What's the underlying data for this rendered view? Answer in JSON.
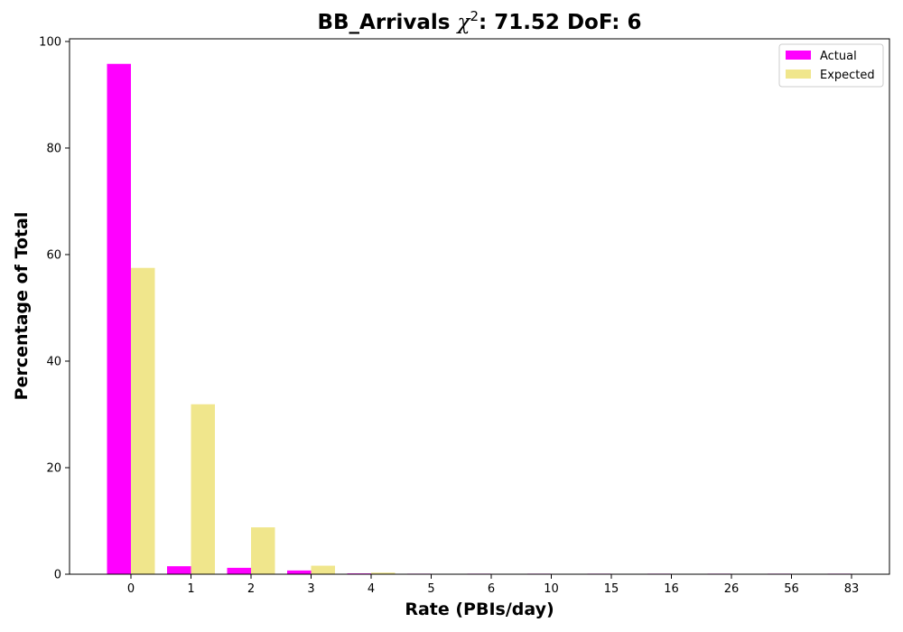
{
  "chart_data": {
    "type": "bar",
    "title": {
      "main": "BB_Arrivals ",
      "chi": "χ",
      "sup": "2",
      "rest": ": 71.52 DoF: 6"
    },
    "xlabel": "Rate (PBIs/day)",
    "ylabel": "Percentage of Total",
    "categories": [
      "0",
      "1",
      "2",
      "3",
      "4",
      "5",
      "6",
      "10",
      "15",
      "16",
      "26",
      "56",
      "83"
    ],
    "series": [
      {
        "name": "Actual",
        "color": "#ff00ff",
        "values": [
          95.8,
          1.5,
          1.2,
          0.7,
          0.15,
          0.1,
          0.1,
          0.1,
          0.1,
          0.1,
          0.1,
          0.1,
          0.1
        ]
      },
      {
        "name": "Expected",
        "color": "#f0e68c",
        "values": [
          57.5,
          31.9,
          8.8,
          1.6,
          0.3,
          0.05,
          0.0,
          0.0,
          0.0,
          0.0,
          0.0,
          0.0,
          0.0
        ]
      }
    ],
    "ylim": [
      0,
      100.5
    ],
    "yticks": [
      0,
      20,
      40,
      60,
      80,
      100
    ],
    "grid": false,
    "legend_position": "top-right"
  }
}
